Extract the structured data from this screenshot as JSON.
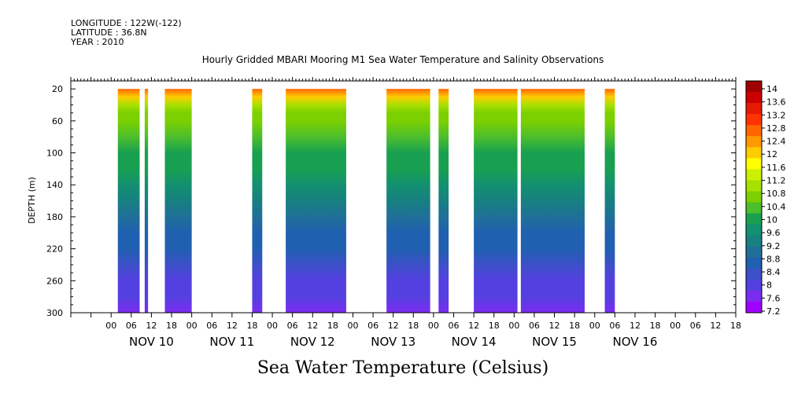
{
  "header": {
    "longitude": "LONGITUDE : 122W(-122)",
    "latitude": "LATITUDE : 36.8N",
    "year": "YEAR : 2010"
  },
  "chart_data": {
    "type": "heatmap",
    "title": "Hourly Gridded MBARI Mooring M1 Sea Water Temperature and Salinity Observations",
    "subtitle": "Sea Water Temperature (Celsius)",
    "ylabel": "DEPTH (m)",
    "xlabel": "",
    "y_axis": {
      "reversed": true,
      "range": [
        10,
        300
      ],
      "ticks": [
        20,
        60,
        100,
        140,
        180,
        220,
        260,
        300
      ]
    },
    "x_axis": {
      "range_hours": [
        -12,
        186
      ],
      "hour_ticks": [
        "00",
        "06",
        "12",
        "18",
        "00",
        "06",
        "12",
        "18",
        "00",
        "06",
        "12",
        "18",
        "00",
        "06",
        "12",
        "18",
        "00",
        "06",
        "12",
        "18",
        "00",
        "06",
        "12",
        "18",
        "00",
        "06",
        "12",
        "18",
        "00",
        "06",
        "12",
        "18"
      ],
      "day_labels": [
        "NOV 10",
        "NOV 11",
        "NOV 12",
        "NOV 13",
        "NOV 14",
        "NOV 15",
        "NOV 16"
      ]
    },
    "colorbar_levels": [
      "14",
      "13.6",
      "13.2",
      "12.8",
      "12.4",
      "12",
      "11.6",
      "11.2",
      "10.8",
      "10.4",
      "10",
      "9.6",
      "9.2",
      "8.8",
      "8.4",
      "8",
      "7.6",
      "7.2"
    ],
    "depth_profile": {
      "depth_m": [
        20,
        30,
        40,
        50,
        60,
        80,
        100,
        120,
        140,
        160,
        180,
        200,
        220,
        240,
        260,
        280,
        300
      ],
      "temperature_c": [
        12.8,
        12.0,
        11.0,
        10.7,
        10.5,
        10.2,
        10.0,
        9.8,
        9.5,
        9.1,
        8.8,
        8.6,
        8.4,
        8.2,
        8.0,
        7.8,
        7.6
      ]
    },
    "data_segments_hours": [
      [
        2,
        8.5
      ],
      [
        10,
        11
      ],
      [
        16,
        24
      ],
      [
        42,
        45
      ],
      [
        52,
        70
      ],
      [
        82,
        95
      ],
      [
        97.5,
        100.5
      ],
      [
        108,
        121
      ],
      [
        122,
        141
      ],
      [
        147,
        150
      ]
    ],
    "grid": false,
    "legend": "right colorbar"
  }
}
